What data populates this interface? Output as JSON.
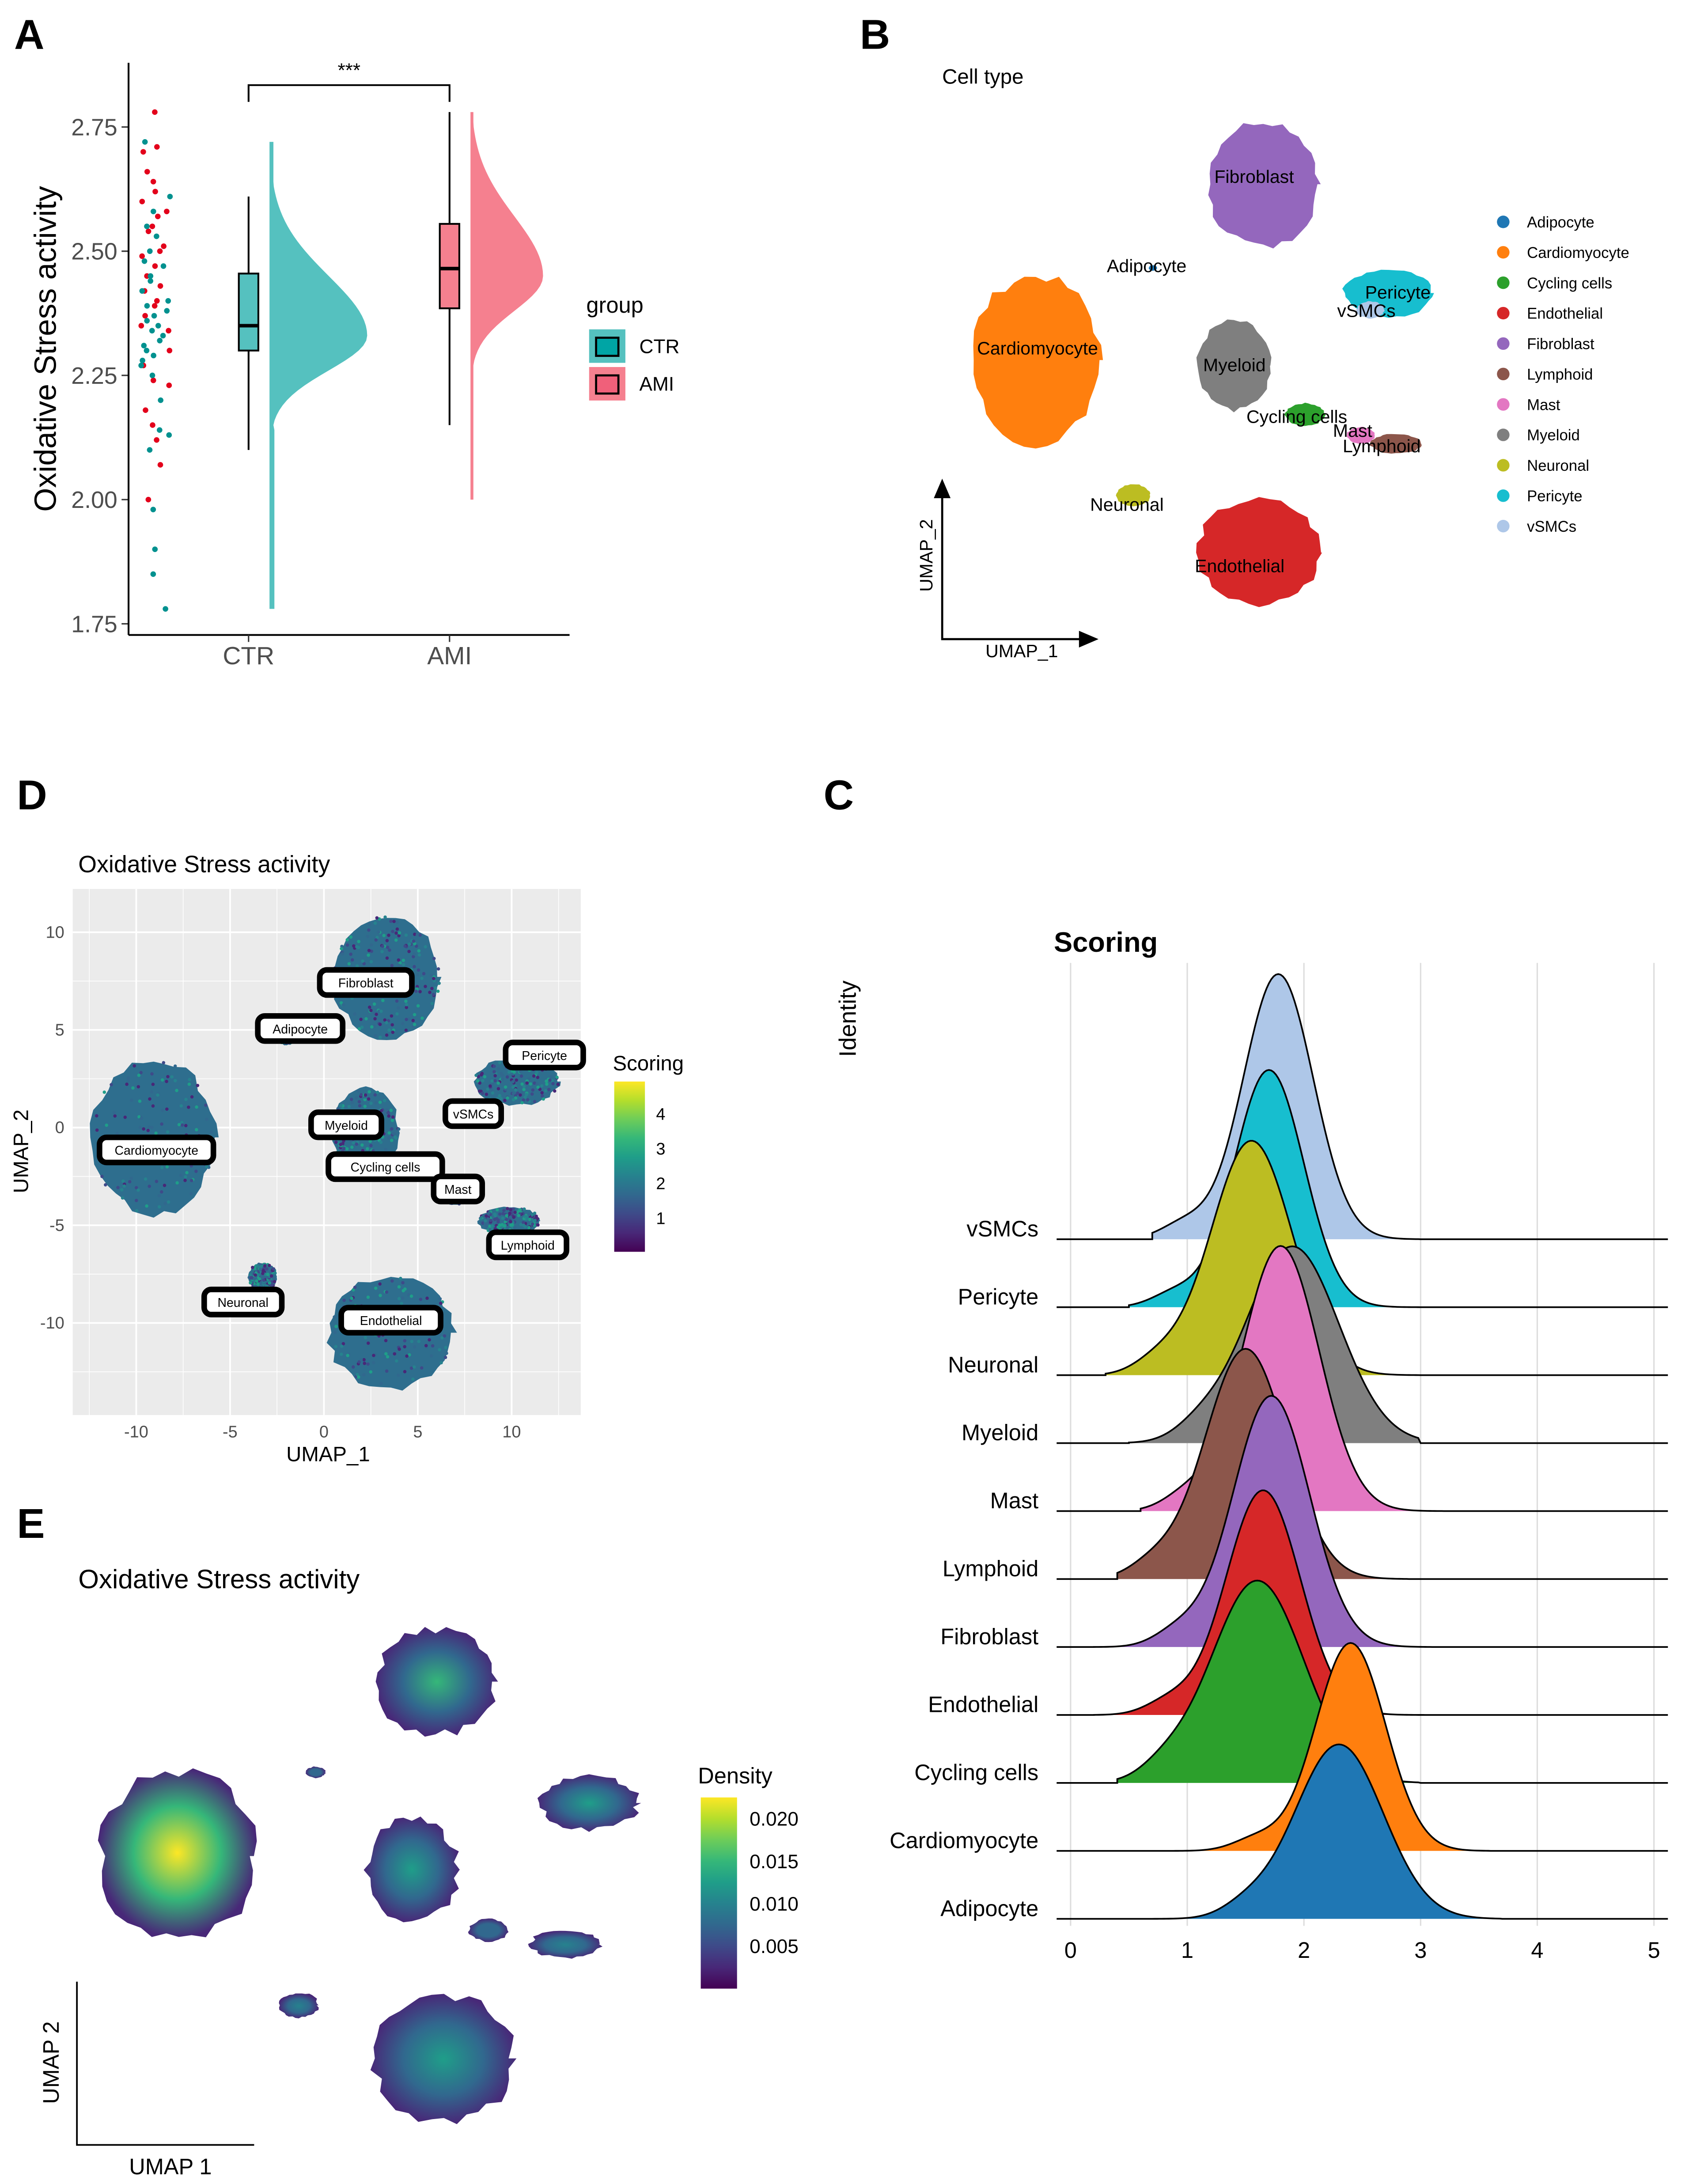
{
  "panel_labels": {
    "a": "A",
    "b": "B",
    "c": "C",
    "d": "D",
    "e": "E"
  },
  "colors": {
    "ctr": "#00A5A5",
    "ami": "#F0607A",
    "ctr_fill": "#55C1BF",
    "ami_fill": "#F5808F",
    "celltypes": {
      "Adipocyte": "#1F77B4",
      "Cardiomyocyte": "#FF7F0E",
      "Cycling cells": "#2CA02C",
      "Endothelial": "#D62728",
      "Fibroblast": "#9467BD",
      "Lymphoid": "#8C564B",
      "Mast": "#E377C2",
      "Myeloid": "#7F7F7F",
      "Neuronal": "#BCBD22",
      "Pericyte": "#17BECF",
      "vSMCs": "#AEC7E8"
    }
  },
  "chart_data": [
    {
      "id": "A",
      "type": "box-violin",
      "ylabel": "Oxidative Stress activity",
      "xlabel": "",
      "categories": [
        "CTR",
        "AMI"
      ],
      "yticks": [
        "1.75",
        "2.00",
        "2.25",
        "2.50",
        "2.75"
      ],
      "ylim": [
        1.72,
        2.88
      ],
      "significance": "***",
      "legend": {
        "title": "group",
        "entries": [
          "CTR",
          "AMI"
        ],
        "placement": "right"
      },
      "box": [
        {
          "group": "CTR",
          "min": 2.1,
          "q1": 2.3,
          "median": 2.35,
          "q3": 2.455,
          "max": 2.61,
          "violin_range": [
            1.78,
            2.72
          ],
          "mode": 2.33
        },
        {
          "group": "AMI",
          "min": 2.15,
          "q1": 2.385,
          "median": 2.465,
          "q3": 2.555,
          "max": 2.78,
          "violin_range": [
            2.0,
            2.78
          ],
          "mode": 2.45
        }
      ],
      "points_ctr": [
        2.72,
        2.61,
        2.58,
        2.55,
        2.53,
        2.5,
        2.48,
        2.47,
        2.45,
        2.44,
        2.42,
        2.4,
        2.39,
        2.38,
        2.37,
        2.36,
        2.35,
        2.34,
        2.33,
        2.32,
        2.31,
        2.3,
        2.29,
        2.28,
        2.27,
        2.25,
        2.2,
        2.14,
        2.13,
        2.1,
        1.98,
        1.9,
        1.85,
        1.78
      ],
      "points_ami": [
        2.78,
        2.71,
        2.7,
        2.66,
        2.64,
        2.62,
        2.6,
        2.58,
        2.57,
        2.55,
        2.54,
        2.51,
        2.5,
        2.49,
        2.47,
        2.45,
        2.43,
        2.42,
        2.4,
        2.39,
        2.37,
        2.35,
        2.34,
        2.3,
        2.27,
        2.24,
        2.23,
        2.18,
        2.15,
        2.12,
        2.07,
        2.0
      ]
    },
    {
      "id": "B",
      "type": "scatter",
      "title": "Cell type",
      "xlabel": "UMAP_1",
      "ylabel": "UMAP_2",
      "legend": {
        "entries": [
          "Adipocyte",
          "Cardiomyocyte",
          "Cycling cells",
          "Endothelial",
          "Fibroblast",
          "Lymphoid",
          "Mast",
          "Myeloid",
          "Neuronal",
          "Pericyte",
          "vSMCs"
        ],
        "placement": "right"
      },
      "cluster_labels": [
        "Fibroblast",
        "Adipocyte",
        "Pericyte",
        "vSMCs",
        "Cardiomyocyte",
        "Myeloid",
        "Cycling cells",
        "Mast",
        "Lymphoid",
        "Neuronal",
        "Endothelial"
      ]
    },
    {
      "id": "D",
      "type": "scatter",
      "title": "Oxidative Stress activity",
      "xlabel": "UMAP_1",
      "ylabel": "UMAP_2",
      "xticks": [
        "-10",
        "-5",
        "0",
        "5",
        "10"
      ],
      "xtick_values": [
        -10,
        -5,
        0,
        5,
        10
      ],
      "yticks": [
        "10",
        "5",
        "0",
        "-5",
        "-10"
      ],
      "ytick_values": [
        10,
        5,
        0,
        -5,
        -10
      ],
      "xlim": [
        -13.5,
        13.5
      ],
      "ylim": [
        -14.5,
        12
      ],
      "colorbar": {
        "title": "Scoring",
        "ticks": [
          "4",
          "3",
          "2",
          "1"
        ],
        "tick_values": [
          4,
          3,
          2,
          1
        ],
        "range": [
          0,
          4.9
        ]
      },
      "cluster_labels": [
        "Fibroblast",
        "Adipocyte",
        "Pericyte",
        "vSMCs",
        "Myeloid",
        "Cardiomyocyte",
        "Cycling cells",
        "Mast",
        "Lymphoid",
        "Neuronal",
        "Endothelial"
      ]
    },
    {
      "id": "C",
      "type": "ridgeline",
      "title": "Scoring",
      "ylabel": "Identity",
      "xticks": [
        "0",
        "1",
        "2",
        "3",
        "4",
        "5"
      ],
      "xlim": [
        0,
        5
      ],
      "categories": [
        "Adipocyte",
        "Cardiomyocyte",
        "Cycling cells",
        "Endothelial",
        "Fibroblast",
        "Lymphoid",
        "Mast",
        "Myeloid",
        "Neuronal",
        "Pericyte",
        "vSMCs"
      ],
      "series": [
        {
          "name": "Adipocyte",
          "mode": 2.3,
          "sd": 0.38,
          "range": [
            0.3,
            3.7
          ]
        },
        {
          "name": "Cardiomyocyte",
          "mode": 2.4,
          "sd": 0.3,
          "range": [
            0.5,
            3.6
          ]
        },
        {
          "name": "Cycling cells",
          "mode": 1.6,
          "sd": 0.4,
          "range": [
            0.4,
            3.0
          ]
        },
        {
          "name": "Endothelial",
          "mode": 1.65,
          "sd": 0.32,
          "range": [
            0.2,
            3.2
          ]
        },
        {
          "name": "Fibroblast",
          "mode": 1.72,
          "sd": 0.33,
          "range": [
            0.2,
            3.1
          ]
        },
        {
          "name": "Lymphoid",
          "mode": 1.5,
          "sd": 0.35,
          "range": [
            0.4,
            2.9
          ]
        },
        {
          "name": "Mast",
          "mode": 1.8,
          "sd": 0.33,
          "range": [
            0.6,
            3.2
          ]
        },
        {
          "name": "Myeloid",
          "mode": 1.9,
          "sd": 0.4,
          "range": [
            0.5,
            3.0
          ]
        },
        {
          "name": "Neuronal",
          "mode": 1.55,
          "sd": 0.35,
          "range": [
            0.3,
            3.0
          ]
        },
        {
          "name": "Pericyte",
          "mode": 1.7,
          "sd": 0.3,
          "range": [
            0.5,
            3.0
          ]
        },
        {
          "name": "vSMCs",
          "mode": 1.78,
          "sd": 0.3,
          "range": [
            0.7,
            3.0
          ]
        }
      ]
    },
    {
      "id": "E",
      "type": "density-scatter",
      "title": "Oxidative Stress activity",
      "xlabel": "UMAP 1",
      "ylabel": "UMAP 2",
      "colorbar": {
        "title": "Density",
        "ticks": [
          "0.020",
          "0.015",
          "0.010",
          "0.005"
        ],
        "tick_values": [
          0.02,
          0.015,
          0.01,
          0.005
        ],
        "range": [
          0.0,
          0.0225
        ]
      }
    }
  ]
}
